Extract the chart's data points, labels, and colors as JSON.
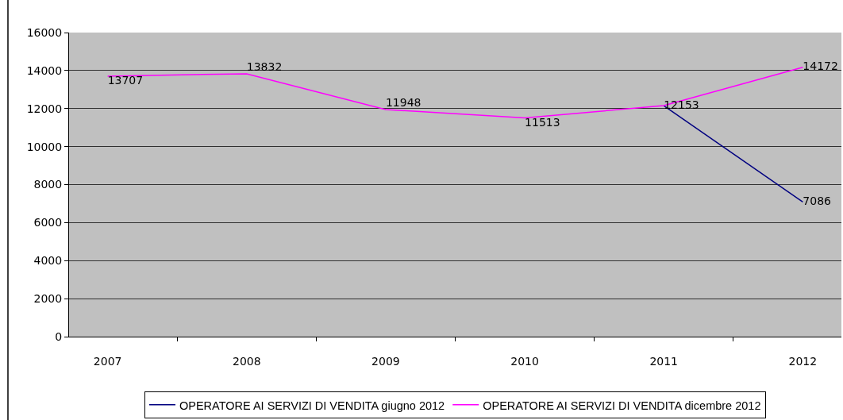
{
  "chart_data": {
    "type": "line",
    "categories": [
      "2007",
      "2008",
      "2009",
      "2010",
      "2011",
      "2012"
    ],
    "series": [
      {
        "name": "OPERATORE AI SERVIZI DI VENDITA giugno 2012",
        "color": "#000080",
        "values": [
          null,
          null,
          null,
          null,
          12153,
          7086
        ],
        "value_labels": [
          null,
          null,
          null,
          null,
          null,
          "7086"
        ]
      },
      {
        "name": "OPERATORE AI SERVIZI DI VENDITA dicembre 2012",
        "color": "#ff00ff",
        "values": [
          13707,
          13832,
          11948,
          11513,
          12153,
          14172
        ],
        "value_labels": [
          "13707",
          "13832",
          "11948",
          "11513",
          "12153",
          "14172"
        ]
      }
    ],
    "ylim": [
      0,
      16000
    ],
    "yticks": [
      0,
      2000,
      4000,
      6000,
      8000,
      10000,
      12000,
      14000,
      16000
    ],
    "grid": "y",
    "legend": "bottom"
  }
}
